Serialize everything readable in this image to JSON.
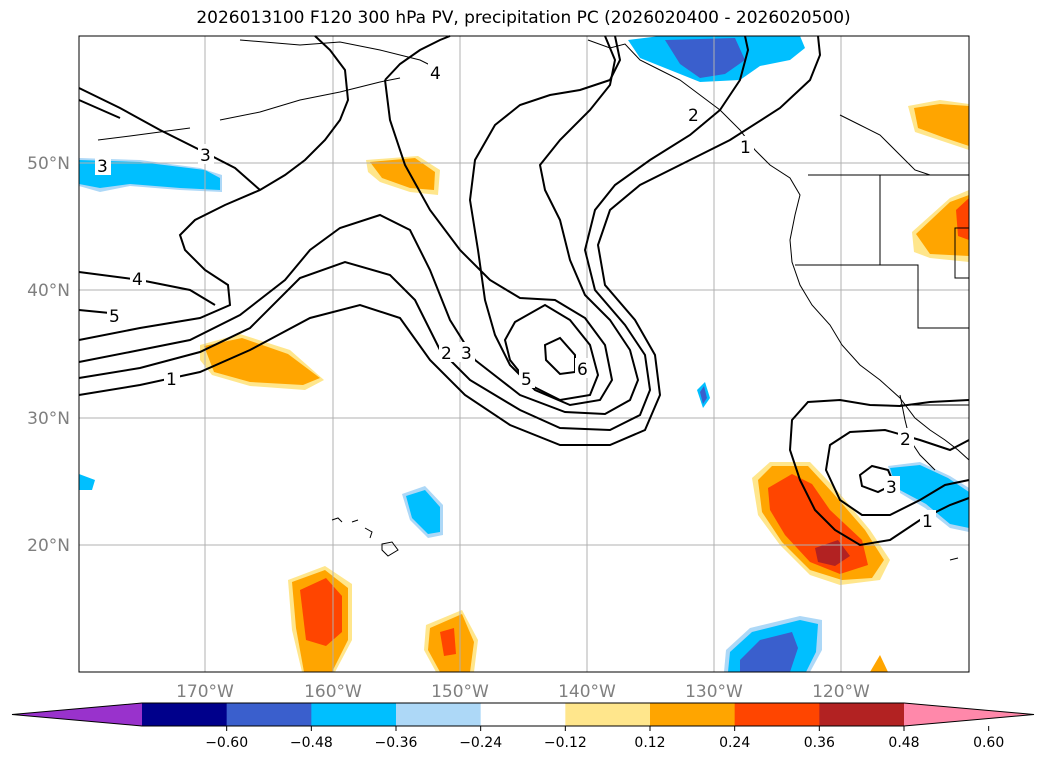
{
  "title": "2026013100 F120 300 hPa PV, precipitation PC (2026020400 - 2026020500)",
  "lat_labels": [
    "50°N",
    "40°N",
    "30°N",
    "20°N"
  ],
  "lon_labels": [
    "170°W",
    "160°W",
    "150°W",
    "140°W",
    "130°W",
    "120°W"
  ],
  "colorbar": {
    "ticks": [
      "−0.60",
      "−0.48",
      "−0.36",
      "−0.24",
      "−0.12",
      "0.12",
      "0.24",
      "0.36",
      "0.48",
      "0.60"
    ],
    "colors": [
      "#9932cc",
      "#00008b",
      "#3a5fcd",
      "#00bfff",
      "#add8f7",
      "#ffffff",
      "#ffe68c",
      "#ffa500",
      "#ff4500",
      "#b22222",
      "#ff88aa"
    ]
  },
  "contour_labels": [
    "1",
    "2",
    "3",
    "4",
    "5",
    "6",
    "3",
    "4",
    "5",
    "1",
    "2",
    "3",
    "1",
    "2",
    "3"
  ],
  "map_extent": {
    "lon": [
      -180,
      -110
    ],
    "lat": [
      10,
      60
    ]
  },
  "pv_levels": [
    1,
    2,
    3,
    4,
    5,
    6
  ]
}
